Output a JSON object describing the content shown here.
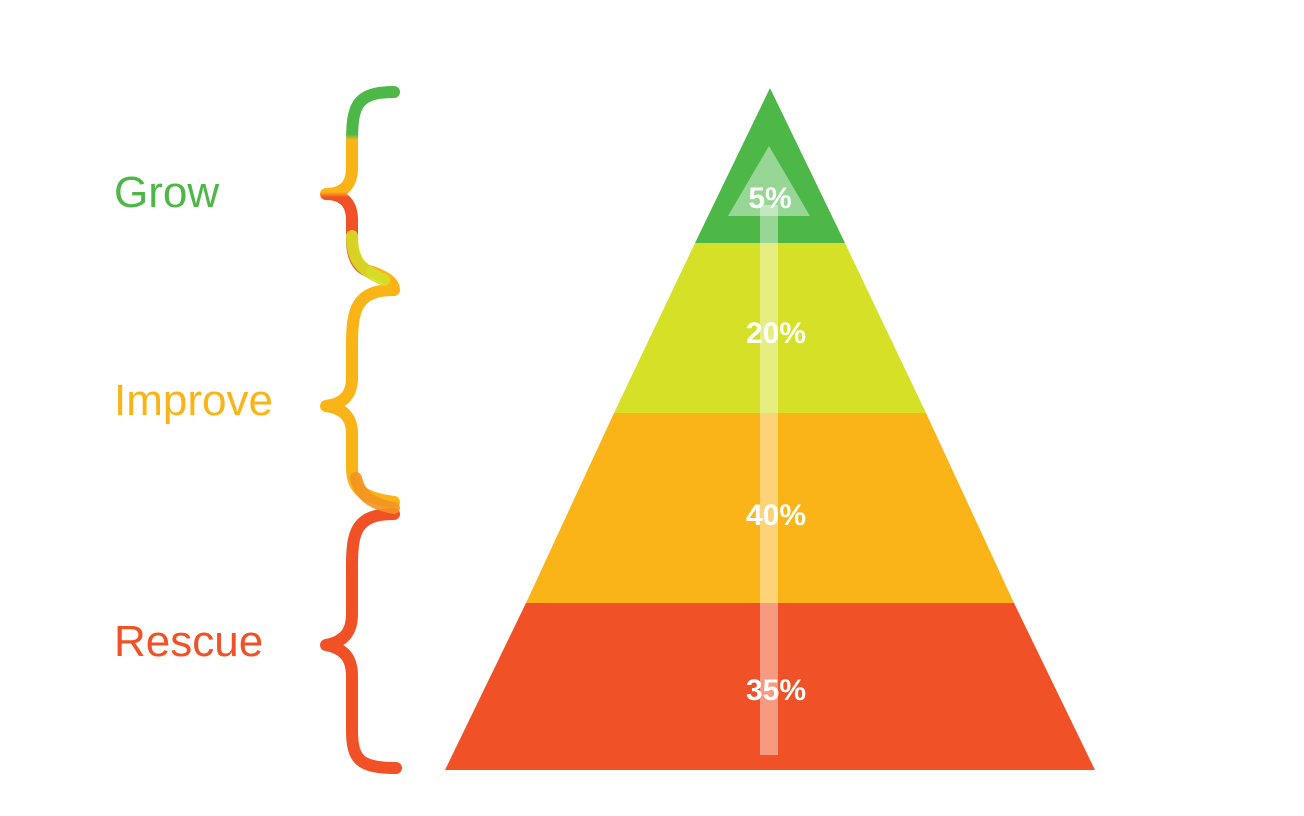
{
  "groups": [
    {
      "label": "Grow",
      "color": "#4db848"
    },
    {
      "label": "Improve",
      "color": "#fbb417"
    },
    {
      "label": "Rescue",
      "color": "#f05126"
    }
  ],
  "tiers": [
    {
      "label": "5%",
      "value": 5,
      "color": "#4db848"
    },
    {
      "label": "20%",
      "value": 20,
      "color": "#d5e027"
    },
    {
      "label": "40%",
      "value": 40,
      "color": "#fbb417"
    },
    {
      "label": "35%",
      "value": 35,
      "color": "#f05126"
    }
  ],
  "arrow_color": "#ffffff"
}
